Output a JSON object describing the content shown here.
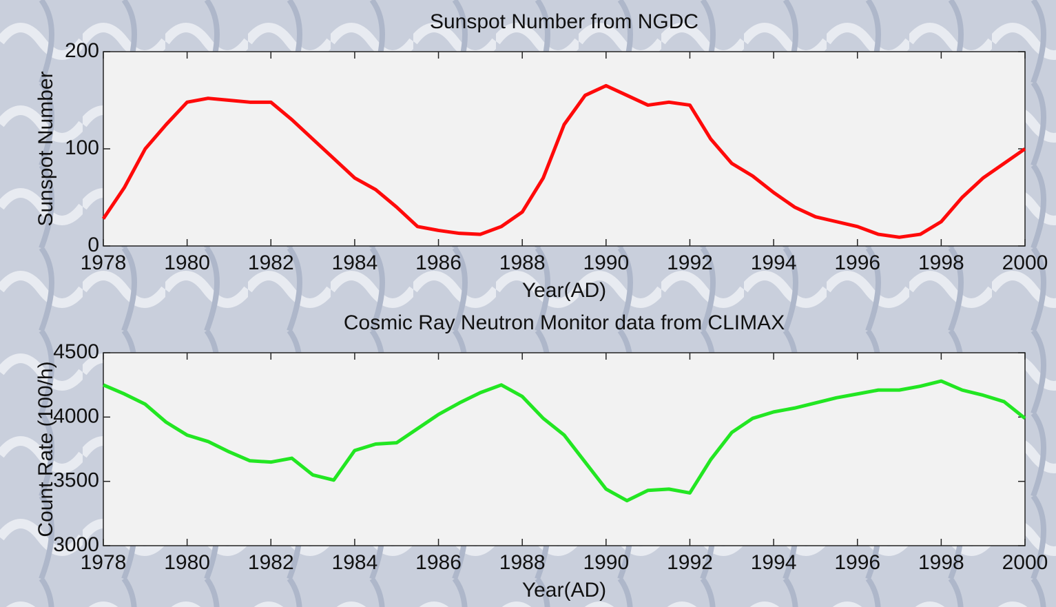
{
  "chart_data": [
    {
      "type": "line",
      "title": "Sunspot Number from NGDC",
      "x_label": "Year(AD)",
      "y_label": "Sunspot Number",
      "color": "#ff0a0a",
      "x": [
        1978,
        1978.5,
        1979,
        1979.5,
        1980,
        1980.5,
        1981,
        1981.5,
        1982,
        1982.5,
        1983,
        1983.5,
        1984,
        1984.5,
        1985,
        1985.5,
        1986,
        1986.5,
        1987,
        1987.5,
        1988,
        1988.5,
        1989,
        1989.5,
        1990,
        1990.5,
        1991,
        1991.5,
        1992,
        1992.5,
        1993,
        1993.5,
        1994,
        1994.5,
        1995,
        1995.5,
        1996,
        1996.5,
        1997,
        1997.5,
        1998,
        1998.5,
        1999,
        1999.5,
        2000
      ],
      "values": [
        28,
        60,
        100,
        125,
        148,
        152,
        150,
        148,
        148,
        130,
        110,
        90,
        70,
        58,
        40,
        20,
        16,
        13,
        12,
        20,
        35,
        70,
        125,
        155,
        165,
        155,
        145,
        148,
        145,
        110,
        85,
        72,
        55,
        40,
        30,
        25,
        20,
        12,
        9,
        12,
        25,
        50,
        70,
        85,
        100
      ],
      "xlim": [
        1978,
        2000
      ],
      "xticks": [
        1978,
        1980,
        1982,
        1984,
        1986,
        1988,
        1990,
        1992,
        1994,
        1996,
        1998,
        2000
      ],
      "ylim": [
        0,
        200
      ],
      "yticks": [
        0,
        100,
        200
      ]
    },
    {
      "type": "line",
      "title": "Cosmic Ray Neutron Monitor data from CLIMAX",
      "x_label": "Year(AD)",
      "y_label": "Count Rate (100/h)",
      "color": "#22e622",
      "x": [
        1978,
        1978.5,
        1979,
        1979.5,
        1980,
        1980.5,
        1981,
        1981.5,
        1982,
        1982.5,
        1983,
        1983.5,
        1984,
        1984.5,
        1985,
        1985.5,
        1986,
        1986.5,
        1987,
        1987.5,
        1988,
        1988.5,
        1989,
        1989.5,
        1990,
        1990.5,
        1991,
        1991.5,
        1992,
        1992.5,
        1993,
        1993.5,
        1994,
        1994.5,
        1995,
        1995.5,
        1996,
        1996.5,
        1997,
        1997.5,
        1998,
        1998.5,
        1999,
        1999.5,
        2000
      ],
      "values": [
        4250,
        4180,
        4100,
        3960,
        3860,
        3810,
        3730,
        3660,
        3650,
        3680,
        3550,
        3510,
        3740,
        3790,
        3800,
        3910,
        4020,
        4110,
        4190,
        4250,
        4160,
        3990,
        3860,
        3650,
        3440,
        3350,
        3430,
        3440,
        3410,
        3670,
        3880,
        3990,
        4040,
        4070,
        4110,
        4150,
        4180,
        4210,
        4210,
        4240,
        4280,
        4210,
        4170,
        4120,
        3990
      ],
      "xlim": [
        1978,
        2000
      ],
      "xticks": [
        1978,
        1980,
        1982,
        1984,
        1986,
        1988,
        1990,
        1992,
        1994,
        1996,
        1998,
        2000
      ],
      "ylim": [
        3000,
        4500
      ],
      "yticks": [
        3000,
        3500,
        4000,
        4500
      ]
    }
  ]
}
